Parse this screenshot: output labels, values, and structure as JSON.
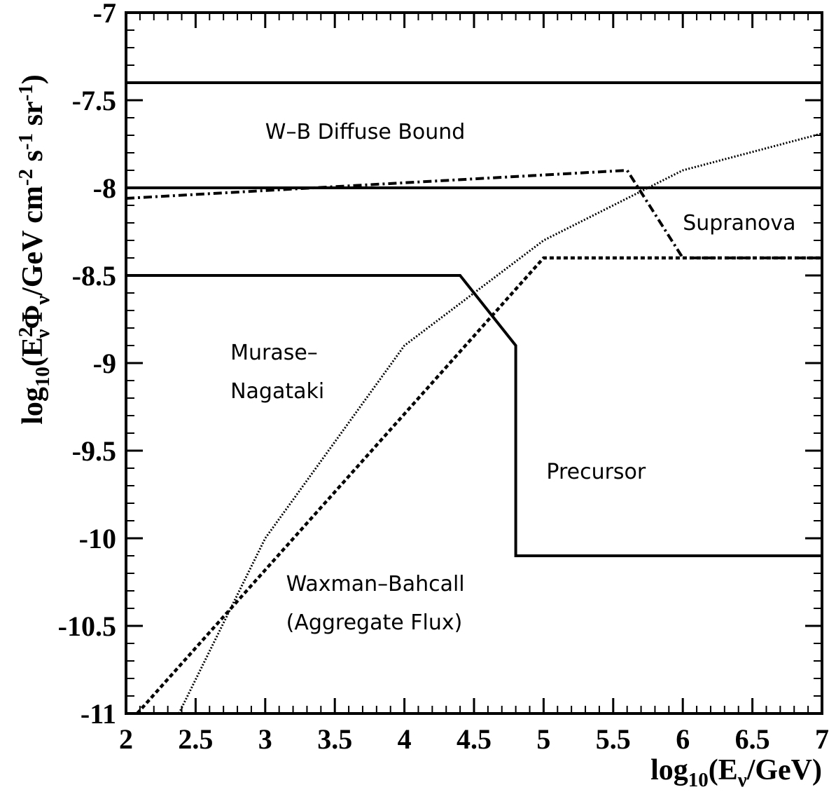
{
  "chart_data": {
    "type": "line",
    "xlabel": {
      "pre": "log",
      "sub1": "10",
      "mid": "(E",
      "sub2": "ν",
      "post": "/GeV)"
    },
    "ylabel": {
      "pre": "log",
      "sub1": "10",
      "p1": "(E",
      "sup1": "2",
      "sub2": "ν",
      "p2": "Φ",
      "sub3": "ν",
      "p3": "/GeV cm",
      "sup2": "-2",
      "p4": " s",
      "sup3": "-1",
      "p5": " sr",
      "sup4": "-1",
      "p6": ")"
    },
    "xlim": [
      2,
      7
    ],
    "ylim": [
      -11,
      -7
    ],
    "xticks": [
      2,
      2.5,
      3,
      3.5,
      4,
      4.5,
      5,
      5.5,
      6,
      6.5,
      7
    ],
    "xtick_labels": [
      "2",
      "2.5",
      "3",
      "3.5",
      "4",
      "4.5",
      "5",
      "5.5",
      "6",
      "6.5",
      "7"
    ],
    "yticks": [
      -11,
      -10.5,
      -10,
      -9.5,
      -9,
      -8.5,
      -8,
      -7.5,
      -7
    ],
    "ytick_labels": [
      "-11",
      "-10.5",
      "-10",
      "-9.5",
      "-9",
      "-8.5",
      "-8",
      "-7.5",
      "-7"
    ],
    "grid": false,
    "series": [
      {
        "id": "wb-upper",
        "style": "solid",
        "points": [
          [
            2,
            -7.4
          ],
          [
            7,
            -7.4
          ]
        ]
      },
      {
        "id": "wb-lower",
        "style": "solid",
        "points": [
          [
            2,
            -8.0
          ],
          [
            7,
            -8.0
          ]
        ]
      },
      {
        "id": "precursor",
        "style": "solid",
        "points": [
          [
            2,
            -8.5
          ],
          [
            4.4,
            -8.5
          ],
          [
            4.8,
            -8.9
          ],
          [
            4.8,
            -10.1
          ],
          [
            7,
            -10.1
          ]
        ]
      },
      {
        "id": "supranova",
        "style": "dashdot",
        "points": [
          [
            2,
            -8.06
          ],
          [
            5.6,
            -7.9
          ],
          [
            6.0,
            -8.4
          ],
          [
            7,
            -8.4
          ]
        ]
      },
      {
        "id": "murase-nagataki",
        "style": "dotted",
        "points": [
          [
            2.38,
            -11
          ],
          [
            3.0,
            -10.0
          ],
          [
            4.0,
            -8.9
          ],
          [
            5.0,
            -8.3
          ],
          [
            6.0,
            -7.9
          ],
          [
            7,
            -7.69
          ]
        ]
      },
      {
        "id": "waxman-bahcall",
        "style": "dashed",
        "points": [
          [
            2.08,
            -11
          ],
          [
            5.0,
            -8.4
          ],
          [
            7,
            -8.4
          ]
        ]
      }
    ],
    "annotations": [
      {
        "id": "wb-bound",
        "text": "W–B Diffuse Bound",
        "x": 3.0,
        "y": -7.72
      },
      {
        "id": "supranova",
        "text": "Supranova",
        "x": 6.0,
        "y": -8.24
      },
      {
        "id": "murase-1",
        "text": "Murase–",
        "x": 2.75,
        "y": -8.98
      },
      {
        "id": "murase-2",
        "text": "Nagataki",
        "x": 2.75,
        "y": -9.2
      },
      {
        "id": "precursor",
        "text": "Precursor",
        "x": 5.02,
        "y": -9.66
      },
      {
        "id": "wb-agg-1",
        "text": "Waxman–Bahcall",
        "x": 3.15,
        "y": -10.3
      },
      {
        "id": "wb-agg-2",
        "text": "(Aggregate Flux)",
        "x": 3.15,
        "y": -10.52
      }
    ]
  }
}
